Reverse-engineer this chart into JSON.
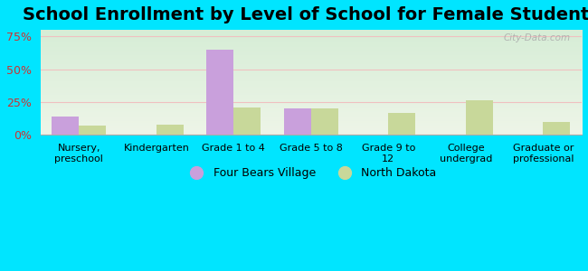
{
  "title": "School Enrollment by Level of School for Female Students",
  "categories": [
    "Nursery,\npreschool",
    "Kindergarten",
    "Grade 1 to 4",
    "Grade 5 to 8",
    "Grade 9 to\n12",
    "College\nundergrad",
    "Graduate or\nprofessional"
  ],
  "four_bears": [
    14,
    0,
    65,
    20,
    0,
    0,
    0
  ],
  "north_dakota": [
    7,
    8,
    21,
    20,
    17,
    26,
    10
  ],
  "four_bears_color": "#c9a0dc",
  "north_dakota_color": "#c8d89a",
  "background_color": "#00e5ff",
  "plot_bg_top": "#d6edd6",
  "plot_bg_bottom": "#eef5e8",
  "ylim": [
    0,
    80
  ],
  "yticks": [
    0,
    25,
    50,
    75
  ],
  "ytick_labels": [
    "0%",
    "25%",
    "50%",
    "75%"
  ],
  "title_fontsize": 14,
  "legend_labels": [
    "Four Bears Village",
    "North Dakota"
  ],
  "bar_width": 0.35,
  "watermark": "City-Data.com",
  "grid_color": "#f0c0c0",
  "tick_label_color": "#cc3333"
}
